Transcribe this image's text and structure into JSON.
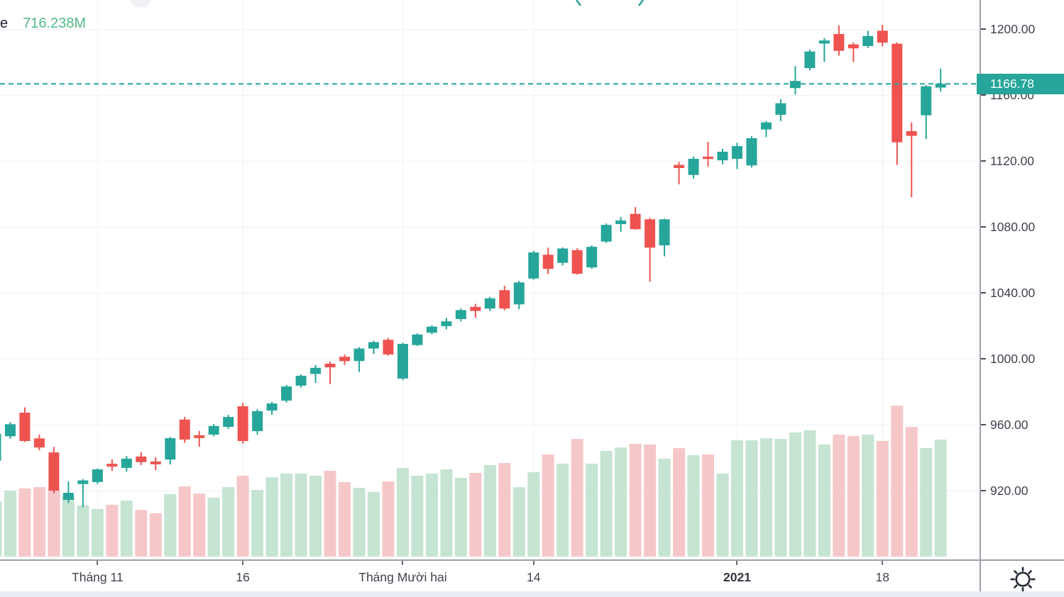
{
  "volume_legend": {
    "truncated_label": "e",
    "value": "716.238M",
    "value_color": "#53b987"
  },
  "price_axis": {
    "current_price": "1166.78",
    "current_price_value": 1166.78,
    "current_price_bg": "#26a69a",
    "tick_labels": [
      "1200.00",
      "1160.00",
      "1120.00",
      "1080.00",
      "1040.00",
      "1000.00",
      "960.00",
      "920.00"
    ],
    "tick_values": [
      1200,
      1160,
      1120,
      1080,
      1040,
      1000,
      960,
      920
    ]
  },
  "time_axis": {
    "labels": [
      {
        "text": "Tháng 11",
        "candle_index": 7,
        "bold": false
      },
      {
        "text": "16",
        "candle_index": 17,
        "bold": false
      },
      {
        "text": "Tháng Mười hai",
        "candle_index": 28,
        "bold": false
      },
      {
        "text": "14",
        "candle_index": 37,
        "bold": false
      },
      {
        "text": "2021",
        "candle_index": 51,
        "bold": true
      },
      {
        "text": "18",
        "candle_index": 61,
        "bold": false
      }
    ]
  },
  "toolbar": {
    "theme_icon": "sun-icon"
  },
  "chart_data": {
    "type": "candlestick",
    "legend_volume_value": "716.238M",
    "price_line_value": 1166.78,
    "ylim": [
      878,
      1218
    ],
    "grid": true,
    "up_color": "#26a69a",
    "down_color": "#ef5350",
    "volume_up_color": "#c5e4d2",
    "volume_down_color": "#f6c7c9",
    "dashed_line_color": "#26a69a",
    "price_ticks": [
      1200,
      1160,
      1120,
      1080,
      1040,
      1000,
      960,
      920
    ],
    "candles_format": [
      "open",
      "high",
      "low",
      "close",
      "volume_millions"
    ],
    "candles": [
      [
        938.1,
        955.3,
        936.4,
        954.4,
        339
      ],
      [
        953.0,
        961.5,
        951.5,
        960.3,
        404
      ],
      [
        967.3,
        970.5,
        949.5,
        950.1,
        417
      ],
      [
        951.7,
        954.0,
        944.5,
        946.2,
        425
      ],
      [
        943.2,
        946.5,
        918.5,
        920.0,
        408
      ],
      [
        914.4,
        925.6,
        912.5,
        918.7,
        373
      ],
      [
        924.0,
        927.0,
        910.0,
        926.2,
        313
      ],
      [
        925.2,
        933.5,
        924.0,
        932.9,
        291
      ],
      [
        936.3,
        939.0,
        932.0,
        934.6,
        317
      ],
      [
        933.8,
        941.0,
        931.5,
        939.4,
        343
      ],
      [
        940.7,
        943.3,
        935.5,
        937.3,
        286
      ],
      [
        937.7,
        940.3,
        932.5,
        936.0,
        265
      ],
      [
        938.9,
        952.6,
        935.9,
        951.8,
        382
      ],
      [
        963.1,
        964.7,
        949.0,
        951.0,
        430
      ],
      [
        953.6,
        956.2,
        946.7,
        951.9,
        386
      ],
      [
        954.0,
        960.4,
        953.0,
        959.2,
        360
      ],
      [
        958.7,
        966.0,
        957.5,
        964.7,
        425
      ],
      [
        971.2,
        973.3,
        948.5,
        950.1,
        495
      ],
      [
        956.1,
        969.5,
        954.0,
        968.2,
        408
      ],
      [
        968.6,
        973.8,
        966.0,
        972.9,
        486
      ],
      [
        974.6,
        984.1,
        973.5,
        983.2,
        508
      ],
      [
        983.7,
        990.5,
        982.5,
        989.7,
        508
      ],
      [
        990.8,
        996.2,
        985.4,
        994.5,
        495
      ],
      [
        997.0,
        998.3,
        984.6,
        994.8,
        525
      ],
      [
        1001.2,
        1002.6,
        996.2,
        998.6,
        456
      ],
      [
        998.6,
        1007.0,
        992.0,
        1006.2,
        421
      ],
      [
        1006.2,
        1011.0,
        1002.9,
        1010.1,
        395
      ],
      [
        1011.5,
        1012.7,
        1001.9,
        1002.6,
        460
      ],
      [
        988.0,
        1009.8,
        987.0,
        1009.0,
        543
      ],
      [
        1008.3,
        1015.5,
        1007.8,
        1014.7,
        495
      ],
      [
        1015.8,
        1020.3,
        1014.8,
        1019.5,
        508
      ],
      [
        1019.8,
        1024.8,
        1017.9,
        1022.7,
        534
      ],
      [
        1024.1,
        1030.5,
        1022.6,
        1029.5,
        482
      ],
      [
        1031.5,
        1033.3,
        1024.8,
        1029.0,
        512
      ],
      [
        1030.5,
        1037.6,
        1029.0,
        1036.7,
        560
      ],
      [
        1041.6,
        1044.3,
        1029.4,
        1030.5,
        573
      ],
      [
        1033.0,
        1047.2,
        1030.1,
        1046.3,
        425
      ],
      [
        1048.7,
        1065.5,
        1048.0,
        1064.5,
        517
      ],
      [
        1063.1,
        1067.4,
        1051.4,
        1054.5,
        625
      ],
      [
        1058.2,
        1067.5,
        1056.6,
        1066.9,
        569
      ],
      [
        1065.9,
        1067.0,
        1051.0,
        1051.6,
        720
      ],
      [
        1055.4,
        1068.8,
        1054.5,
        1067.9,
        569
      ],
      [
        1071.1,
        1082.1,
        1070.2,
        1081.2,
        647
      ],
      [
        1081.7,
        1086.0,
        1077.1,
        1083.9,
        668
      ],
      [
        1087.9,
        1092.0,
        1078.3,
        1078.6,
        690
      ],
      [
        1084.6,
        1085.5,
        1046.8,
        1067.4,
        686
      ],
      [
        1068.8,
        1085.0,
        1062.1,
        1084.6,
        599
      ],
      [
        1117.6,
        1119.4,
        1105.8,
        1115.7,
        664
      ],
      [
        1111.5,
        1122.7,
        1109.4,
        1121.3,
        621
      ],
      [
        1122.6,
        1131.5,
        1116.6,
        1121.2,
        625
      ],
      [
        1120.4,
        1127.3,
        1118.0,
        1125.6,
        508
      ],
      [
        1121.3,
        1131.0,
        1115.1,
        1129.0,
        712
      ],
      [
        1117.3,
        1135.0,
        1116.0,
        1133.8,
        712
      ],
      [
        1139.1,
        1144.2,
        1134.5,
        1143.4,
        725
      ],
      [
        1148.0,
        1157.5,
        1144.2,
        1155.0,
        720
      ],
      [
        1164.2,
        1177.5,
        1160.3,
        1168.5,
        760
      ],
      [
        1176.3,
        1187.5,
        1175.0,
        1186.4,
        773
      ],
      [
        1191.2,
        1194.5,
        1180.1,
        1193.1,
        686
      ],
      [
        1197.0,
        1202.2,
        1183.9,
        1186.8,
        747
      ],
      [
        1190.7,
        1191.8,
        1180.1,
        1188.3,
        738
      ],
      [
        1189.7,
        1199.0,
        1188.5,
        1195.8,
        747
      ],
      [
        1199.0,
        1202.6,
        1189.4,
        1191.8,
        708
      ],
      [
        1191.1,
        1192.0,
        1117.6,
        1131.3,
        924
      ],
      [
        1138.1,
        1143.4,
        1097.9,
        1135.2,
        794
      ],
      [
        1147.7,
        1166.0,
        1133.3,
        1165.3,
        664
      ],
      [
        1164.5,
        1176.0,
        1162.0,
        1166.78,
        716.238
      ]
    ]
  }
}
